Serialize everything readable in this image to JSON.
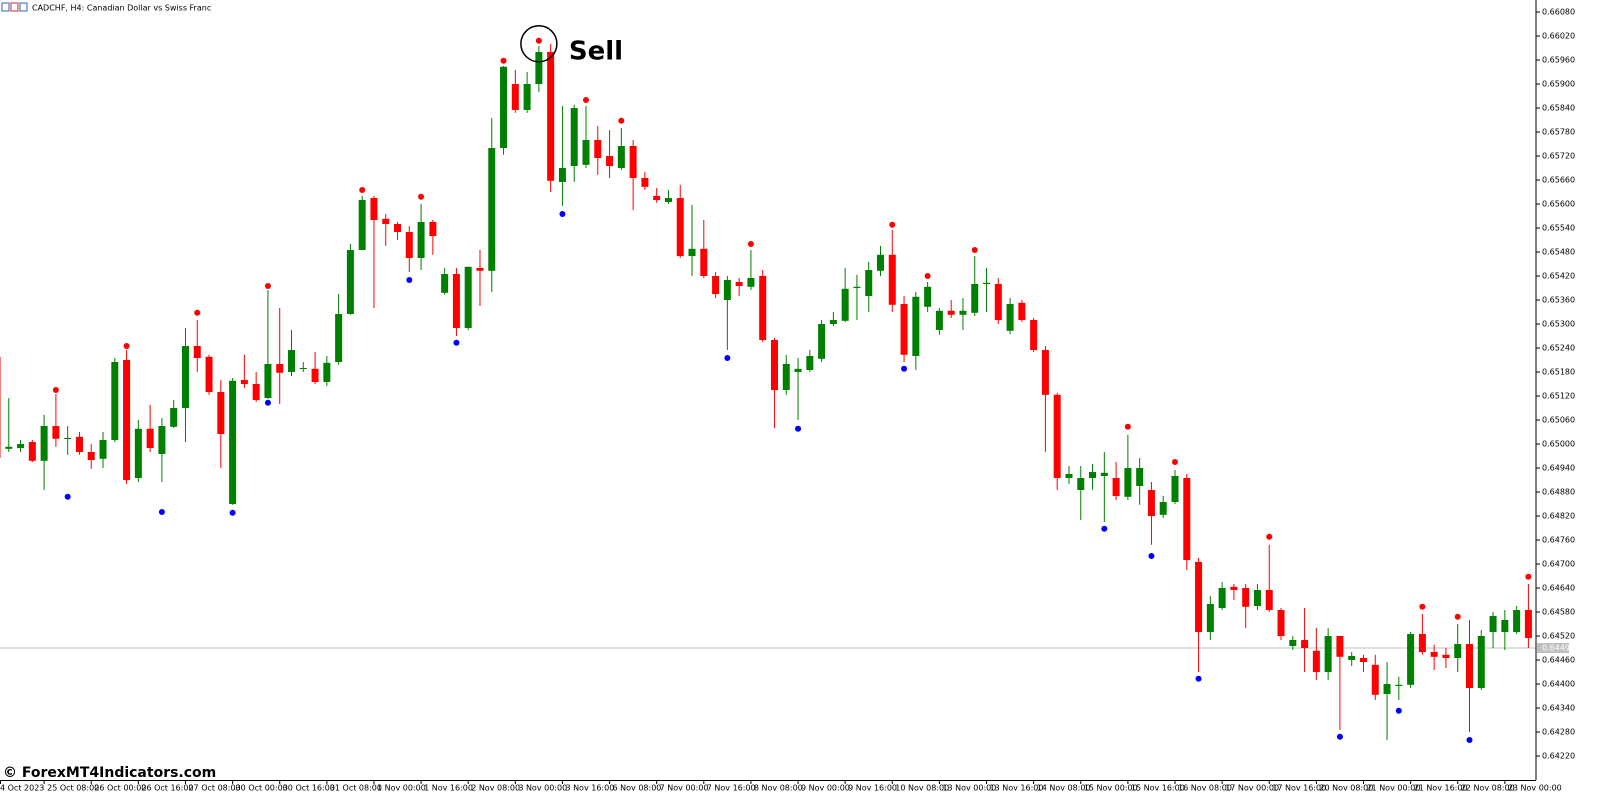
{
  "chart_data": {
    "type": "candlestick",
    "title": "CADCHF, H4:  Canadian Dollar vs Swiss Franc",
    "watermark": "© ForexMT4Indicators.com",
    "up_color": "#008000",
    "down_color": "#ff0000",
    "categories": [
      "4 Oct 2023",
      null,
      null,
      null,
      "25 Oct 08:00",
      null,
      null,
      null,
      "26 Oct 00:00",
      null,
      null,
      null,
      "26 Oct 16:00",
      null,
      null,
      null,
      "27 Oct 08:00",
      null,
      null,
      null,
      "30 Oct 00:00",
      null,
      null,
      null,
      "30 Oct 16:00",
      null,
      null,
      null,
      "31 Oct 08:00",
      null,
      null,
      null,
      "1 Nov 00:00",
      null,
      null,
      null,
      "1 Nov 16:00",
      null,
      null,
      null,
      "2 Nov 08:00",
      null,
      null,
      null,
      "3 Nov 00:00",
      null,
      null,
      null,
      "3 Nov 16:00",
      null,
      null,
      null,
      "6 Nov 08:00",
      null,
      null,
      null,
      "7 Nov 00:00",
      null,
      null,
      null,
      "7 Nov 16:00",
      null,
      null,
      null,
      "8 Nov 08:00",
      null,
      null,
      null,
      "9 Nov 00:00",
      null,
      null,
      null,
      "9 Nov 16:00",
      null,
      null,
      null,
      "10 Nov 08:00",
      null,
      null,
      null,
      "13 Nov 00:00",
      null,
      null,
      null,
      "13 Nov 16:00",
      null,
      null,
      null,
      "14 Nov 08:00",
      null,
      null,
      null,
      "15 Nov 00:00",
      null,
      null,
      null,
      "15 Nov 16:00",
      null,
      null,
      null,
      "16 Nov 08:00",
      null,
      null,
      null,
      "17 Nov 00:00",
      null,
      null,
      null,
      "17 Nov 16:00",
      null,
      null,
      null,
      "20 Nov 08:00",
      null,
      null,
      null,
      "21 Nov 00:00",
      null,
      null,
      null,
      "21 Nov 16:00",
      null,
      null,
      null,
      "22 Nov 08:00",
      null,
      null,
      null,
      "23 Nov 00:00",
      null,
      null
    ],
    "open": [
      0.65218,
      0.64988,
      0.6499,
      0.65005,
      0.64958,
      0.65045,
      0.65013,
      0.65018,
      0.6498,
      0.64963,
      0.6501,
      0.6521,
      0.64915,
      0.65038,
      0.64975,
      0.65043,
      0.6509,
      0.65245,
      0.65218,
      0.6513,
      0.6485,
      0.6516,
      0.6515,
      0.65115,
      0.652,
      0.6518,
      0.65188,
      0.65188,
      0.65155,
      0.65205,
      0.65325,
      0.65485,
      0.65615,
      0.65563,
      0.6555,
      0.6553,
      0.65465,
      0.65555,
      0.65378,
      0.65425,
      0.6529,
      0.6544,
      0.65433,
      0.6574,
      0.659,
      0.65835,
      0.659,
      0.6598,
      0.65655,
      0.65695,
      0.65698,
      0.6576,
      0.6572,
      0.6569,
      0.65745,
      0.65665,
      0.6562,
      0.65605,
      0.65615,
      0.6547,
      0.65488,
      0.6542,
      0.6536,
      0.65405,
      0.65393,
      0.6542,
      0.6526,
      0.65135,
      0.6518,
      0.65185,
      0.65213,
      0.653,
      0.65308,
      0.6539,
      0.6537,
      0.65433,
      0.65473,
      0.6535,
      0.6522,
      0.65343,
      0.65285,
      0.65333,
      0.65323,
      0.65328,
      0.654,
      0.654,
      0.65283,
      0.65353,
      0.6531,
      0.65235,
      0.65123,
      0.64915,
      0.64885,
      0.64915,
      0.6492,
      0.64915,
      0.64868,
      0.64895,
      0.64885,
      0.64823,
      0.64855,
      0.64915,
      0.64705,
      0.6453,
      0.6459,
      0.64643,
      0.6464,
      0.64595,
      0.64635,
      0.64585,
      0.64495,
      0.6451,
      0.64483,
      0.6443,
      0.6452,
      0.6446,
      0.64465,
      0.64448,
      0.64375,
      0.64395,
      0.64398,
      0.64525,
      0.6448,
      0.64473,
      0.64465,
      0.645,
      0.6439,
      0.6453,
      0.6453,
      0.6453,
      0.64585
    ],
    "high": [
      0.65223,
      0.65115,
      0.6501,
      0.6501,
      0.65073,
      0.65125,
      0.65045,
      0.6503,
      0.65,
      0.6503,
      0.65215,
      0.65235,
      0.6506,
      0.65098,
      0.65065,
      0.6511,
      0.6529,
      0.6531,
      0.65223,
      0.6516,
      0.65165,
      0.65223,
      0.6518,
      0.65385,
      0.6534,
      0.65285,
      0.65205,
      0.6523,
      0.6522,
      0.65375,
      0.655,
      0.6562,
      0.6562,
      0.65575,
      0.65555,
      0.65545,
      0.656,
      0.6556,
      0.6544,
      0.6544,
      0.65443,
      0.65485,
      0.65815,
      0.65945,
      0.65935,
      0.6593,
      0.65995,
      0.66,
      0.65845,
      0.65848,
      0.65845,
      0.65795,
      0.65785,
      0.6579,
      0.6576,
      0.6568,
      0.6564,
      0.65635,
      0.65648,
      0.65598,
      0.6556,
      0.6543,
      0.6542,
      0.65415,
      0.65485,
      0.65435,
      0.65265,
      0.65223,
      0.65215,
      0.65235,
      0.6531,
      0.6533,
      0.6544,
      0.65423,
      0.65455,
      0.65495,
      0.65535,
      0.6537,
      0.6538,
      0.65405,
      0.6534,
      0.6536,
      0.65365,
      0.6547,
      0.6544,
      0.65415,
      0.65365,
      0.6536,
      0.65315,
      0.65245,
      0.65128,
      0.64945,
      0.64945,
      0.6495,
      0.6498,
      0.64955,
      0.65023,
      0.64965,
      0.64905,
      0.6487,
      0.64935,
      0.64925,
      0.64715,
      0.6462,
      0.64655,
      0.6465,
      0.6465,
      0.6465,
      0.64748,
      0.6459,
      0.6452,
      0.6459,
      0.6454,
      0.6454,
      0.6452,
      0.6448,
      0.64473,
      0.64473,
      0.64455,
      0.64418,
      0.6453,
      0.64575,
      0.64498,
      0.6449,
      0.6455,
      0.6456,
      0.64535,
      0.6458,
      0.64585,
      0.64595,
      0.6465
    ],
    "low": [
      0.64955,
      0.6498,
      0.6498,
      0.64955,
      0.64885,
      0.64993,
      0.64973,
      0.64973,
      0.64938,
      0.6494,
      0.65005,
      0.649,
      0.64905,
      0.6498,
      0.64905,
      0.6504,
      0.65005,
      0.6518,
      0.65123,
      0.6494,
      0.64848,
      0.6514,
      0.65105,
      0.65113,
      0.651,
      0.6517,
      0.6518,
      0.6515,
      0.65145,
      0.65198,
      0.65323,
      0.65485,
      0.6534,
      0.65495,
      0.6551,
      0.6543,
      0.65435,
      0.65473,
      0.65373,
      0.6527,
      0.65285,
      0.65345,
      0.6538,
      0.65723,
      0.65828,
      0.65828,
      0.6588,
      0.6563,
      0.65595,
      0.65655,
      0.6569,
      0.65673,
      0.65665,
      0.65685,
      0.65585,
      0.65635,
      0.65603,
      0.656,
      0.65465,
      0.6542,
      0.65415,
      0.65365,
      0.65235,
      0.6537,
      0.65385,
      0.65255,
      0.6504,
      0.65123,
      0.6506,
      0.6518,
      0.65205,
      0.65295,
      0.65305,
      0.6531,
      0.6533,
      0.6542,
      0.6533,
      0.65205,
      0.65185,
      0.6533,
      0.65273,
      0.65315,
      0.65285,
      0.6532,
      0.6533,
      0.653,
      0.65275,
      0.65305,
      0.6523,
      0.6498,
      0.64885,
      0.649,
      0.6481,
      0.64885,
      0.64805,
      0.6486,
      0.6486,
      0.64848,
      0.64748,
      0.64815,
      0.6485,
      0.64685,
      0.6443,
      0.6451,
      0.64585,
      0.6461,
      0.6454,
      0.64585,
      0.6458,
      0.6451,
      0.64485,
      0.6443,
      0.6441,
      0.6441,
      0.64285,
      0.64445,
      0.6443,
      0.6436,
      0.6426,
      0.6436,
      0.6439,
      0.64473,
      0.64435,
      0.6444,
      0.6443,
      0.6428,
      0.64385,
      0.6449,
      0.64485,
      0.64525,
      0.6449
    ],
    "close": [
      0.64965,
      0.64993,
      0.65,
      0.64958,
      0.65045,
      0.65013,
      0.65015,
      0.6498,
      0.6496,
      0.6501,
      0.65205,
      0.6491,
      0.65038,
      0.6499,
      0.65045,
      0.6509,
      0.65245,
      0.65215,
      0.6513,
      0.65025,
      0.65158,
      0.6515,
      0.6511,
      0.652,
      0.65178,
      0.65235,
      0.6519,
      0.65155,
      0.65203,
      0.65325,
      0.65485,
      0.6561,
      0.6556,
      0.6555,
      0.6553,
      0.65465,
      0.65555,
      0.6552,
      0.65425,
      0.6529,
      0.65443,
      0.65433,
      0.6574,
      0.65943,
      0.65835,
      0.659,
      0.6598,
      0.65658,
      0.6569,
      0.6584,
      0.6576,
      0.65715,
      0.65695,
      0.65745,
      0.65665,
      0.65643,
      0.6561,
      0.65615,
      0.6547,
      0.65488,
      0.6542,
      0.65375,
      0.6541,
      0.65395,
      0.65415,
      0.6526,
      0.65135,
      0.652,
      0.65188,
      0.6522,
      0.653,
      0.6531,
      0.65388,
      0.65393,
      0.65435,
      0.65473,
      0.65348,
      0.65223,
      0.65368,
      0.65393,
      0.65333,
      0.65323,
      0.65333,
      0.654,
      0.65403,
      0.6531,
      0.6535,
      0.6531,
      0.65235,
      0.65123,
      0.64915,
      0.64925,
      0.64915,
      0.6493,
      0.64928,
      0.6487,
      0.6494,
      0.6494,
      0.6482,
      0.64855,
      0.6492,
      0.6471,
      0.6453,
      0.646,
      0.6464,
      0.64635,
      0.64593,
      0.64635,
      0.64585,
      0.6452,
      0.6451,
      0.6449,
      0.6443,
      0.6452,
      0.64468,
      0.6447,
      0.64455,
      0.64373,
      0.644,
      0.64398,
      0.64525,
      0.6448,
      0.64468,
      0.64465,
      0.645,
      0.6439,
      0.6452,
      0.6457,
      0.6456,
      0.64585,
      0.64515
    ],
    "high_signals": {
      "color": "#ff0000",
      "bars": [
        5,
        11,
        17,
        23,
        31,
        36,
        43,
        46,
        50,
        53,
        64,
        76,
        79,
        83,
        96,
        100,
        108,
        121,
        124,
        130
      ],
      "values": [
        0.65135,
        0.65245,
        0.65328,
        0.65395,
        0.65635,
        0.65618,
        0.65958,
        0.66008,
        0.6586,
        0.65808,
        0.655,
        0.65548,
        0.6542,
        0.65485,
        0.65043,
        0.64955,
        0.64768,
        0.64593,
        0.64568,
        0.64668
      ]
    },
    "low_signals": {
      "color": "#0000ff",
      "bars": [
        6,
        14,
        20,
        23,
        35,
        39,
        48,
        62,
        68,
        77,
        94,
        98,
        102,
        114,
        119,
        125
      ],
      "values": [
        0.64868,
        0.6483,
        0.64828,
        0.65103,
        0.6541,
        0.65253,
        0.65575,
        0.65215,
        0.65038,
        0.65188,
        0.64788,
        0.6472,
        0.64413,
        0.64268,
        0.64333,
        0.6426
      ]
    },
    "annotation": {
      "text": "Sell",
      "bar": 46
    },
    "current_price": {
      "value": 0.6449,
      "label": "0.64490"
    },
    "ylim": [
      0.6416,
      0.6611
    ],
    "yticks": [
      {
        "value": 0.6608,
        "label": "0.66080"
      },
      {
        "value": 0.6602,
        "label": "0.66020"
      },
      {
        "value": 0.6596,
        "label": "0.65960"
      },
      {
        "value": 0.659,
        "label": "0.65900"
      },
      {
        "value": 0.6584,
        "label": "0.65840"
      },
      {
        "value": 0.6578,
        "label": "0.65780"
      },
      {
        "value": 0.6572,
        "label": "0.65720"
      },
      {
        "value": 0.6566,
        "label": "0.65660"
      },
      {
        "value": 0.656,
        "label": "0.65600"
      },
      {
        "value": 0.6554,
        "label": "0.65540"
      },
      {
        "value": 0.6548,
        "label": "0.65480"
      },
      {
        "value": 0.6542,
        "label": "0.65420"
      },
      {
        "value": 0.6536,
        "label": "0.65360"
      },
      {
        "value": 0.653,
        "label": "0.65300"
      },
      {
        "value": 0.6524,
        "label": "0.65240"
      },
      {
        "value": 0.6518,
        "label": "0.65180"
      },
      {
        "value": 0.6512,
        "label": "0.65120"
      },
      {
        "value": 0.6506,
        "label": "0.65060"
      },
      {
        "value": 0.65,
        "label": "0.65000"
      },
      {
        "value": 0.6494,
        "label": "0.64940"
      },
      {
        "value": 0.6488,
        "label": "0.64880"
      },
      {
        "value": 0.6482,
        "label": "0.64820"
      },
      {
        "value": 0.6476,
        "label": "0.64760"
      },
      {
        "value": 0.647,
        "label": "0.64700"
      },
      {
        "value": 0.6464,
        "label": "0.64640"
      },
      {
        "value": 0.6458,
        "label": "0.64580"
      },
      {
        "value": 0.6452,
        "label": "0.64520"
      },
      {
        "value": 0.6446,
        "label": "0.64460"
      },
      {
        "value": 0.644,
        "label": "0.64400"
      },
      {
        "value": 0.6434,
        "label": "0.64340"
      },
      {
        "value": 0.6428,
        "label": "0.64280"
      },
      {
        "value": 0.6422,
        "label": "0.64220"
      }
    ]
  }
}
